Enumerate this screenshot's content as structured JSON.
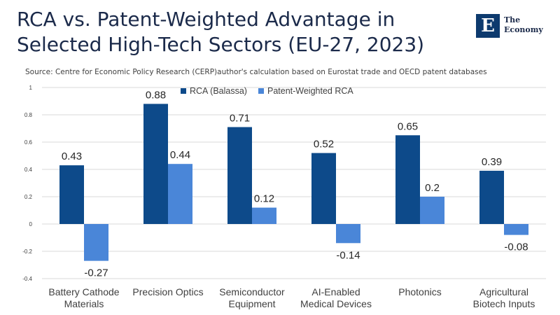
{
  "title": "RCA vs. Patent-Weighted Advantage in Selected High-Tech Sectors (EU-27, 2023)",
  "source": "Source:  Centre for Economic Policy Research (CERP)author's calculation based on Eurostat trade and OECD patent databases",
  "logo": {
    "text": "The\nEconomy",
    "glyph": "E"
  },
  "colors": {
    "series1": "#0d4a8a",
    "series2": "#4a86d8",
    "grid": "#d9d9d9",
    "text": "#404040"
  },
  "chart_data": {
    "type": "bar",
    "categories": [
      "Battery Cathode\nMaterials",
      "Precision Optics",
      "Semiconductor\nEquipment",
      "AI-Enabled\nMedical Devices",
      "Photonics",
      "Agricultural\nBiotech Inputs"
    ],
    "series": [
      {
        "name": "RCA (Balassa)",
        "values": [
          0.43,
          0.88,
          0.71,
          0.52,
          0.65,
          0.39
        ]
      },
      {
        "name": "Patent-Weighted RCA",
        "values": [
          -0.27,
          0.44,
          0.12,
          -0.14,
          0.2,
          -0.08
        ]
      }
    ],
    "yticks": [
      "-0.4",
      "-0.2",
      "0",
      "0.2",
      "0.4",
      "0.6",
      "0.8",
      "1"
    ],
    "ylim": [
      -0.4,
      1
    ],
    "grid": true,
    "legend_position": "top"
  }
}
